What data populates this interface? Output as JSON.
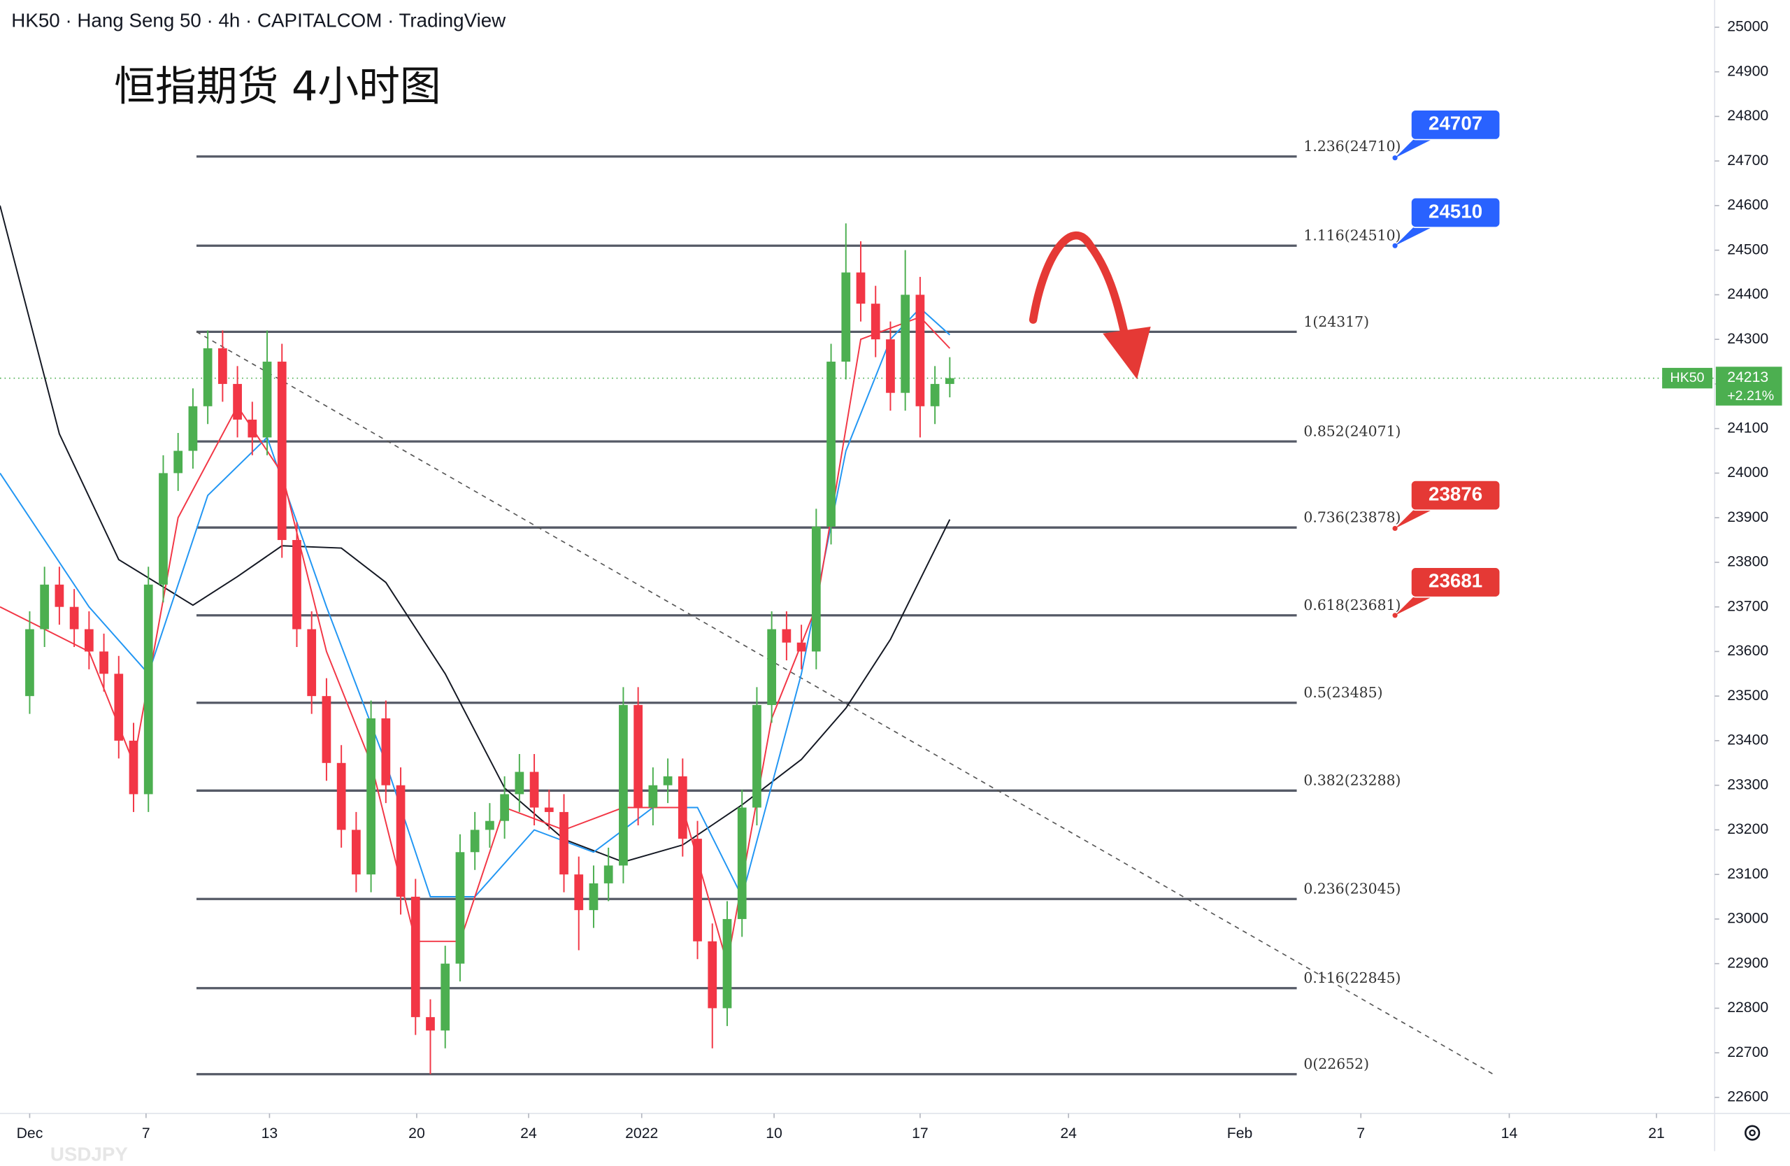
{
  "chart_data": {
    "type": "candlestick",
    "header": "HK50 · Hang Seng 50 · 4h · CAPITALCOM · TradingView",
    "title": "恒指期货 4小时图",
    "watermark": "USDJPY",
    "up_color": "#4caf50",
    "down_color": "#f23645",
    "xlim": [
      -1,
      56.77
    ],
    "xticks": [
      {
        "value": 0,
        "label": "Dec"
      },
      {
        "value": 3.92,
        "label": "7"
      },
      {
        "value": 8.08,
        "label": "13"
      },
      {
        "value": 13.04,
        "label": "20"
      },
      {
        "value": 16.81,
        "label": "24"
      },
      {
        "value": 20.62,
        "label": "2022"
      },
      {
        "value": 25.08,
        "label": "10"
      },
      {
        "value": 30,
        "label": "17"
      },
      {
        "value": 35,
        "label": "24"
      },
      {
        "value": 40.77,
        "label": "Feb"
      },
      {
        "value": 44.85,
        "label": "7"
      },
      {
        "value": 49.85,
        "label": "14"
      },
      {
        "value": 54.81,
        "label": "21"
      }
    ],
    "ylim": [
      22564,
      25061
    ],
    "yticks": [
      22600,
      22700,
      22800,
      22900,
      23000,
      23100,
      23200,
      23300,
      23400,
      23500,
      23600,
      23700,
      23800,
      23900,
      24000,
      24100,
      24200,
      24300,
      24400,
      24500,
      24600,
      24700,
      24800,
      24900,
      25000
    ],
    "x": [
      0,
      0.5,
      1,
      1.5,
      2,
      2.5,
      3,
      3.5,
      4,
      4.5,
      5,
      5.5,
      6,
      6.5,
      7,
      7.5,
      8,
      8.5,
      9,
      9.5,
      10,
      10.5,
      11,
      11.5,
      12,
      12.5,
      13,
      13.5,
      14,
      14.5,
      15,
      15.5,
      16,
      16.5,
      17,
      17.5,
      18,
      18.5,
      19,
      19.5,
      20,
      20.5,
      21,
      21.5,
      22,
      22.5,
      23,
      23.5,
      24,
      24.5,
      25,
      25.5,
      26,
      26.5,
      27,
      27.5,
      28,
      28.5,
      29,
      29.5,
      30,
      30.5,
      31
    ],
    "open": [
      23500,
      23650,
      23750,
      23700,
      23650,
      23600,
      23550,
      23400,
      23280,
      23750,
      24000,
      24050,
      24150,
      24280,
      24200,
      24120,
      24080,
      24250,
      23850,
      23650,
      23500,
      23350,
      23200,
      23100,
      23450,
      23300,
      23050,
      22780,
      22750,
      22900,
      23150,
      23200,
      23220,
      23280,
      23330,
      23250,
      23240,
      23100,
      23020,
      23080,
      23120,
      23480,
      23250,
      23300,
      23320,
      23180,
      22950,
      22800,
      23000,
      23250,
      23480,
      23650,
      23620,
      23600,
      23880,
      24250,
      24450,
      24380,
      24300,
      24180,
      24400,
      24150,
      24200
    ],
    "high": [
      23690,
      23790,
      23790,
      23740,
      23690,
      23640,
      23590,
      23440,
      23790,
      24040,
      24090,
      24190,
      24320,
      24320,
      24240,
      24160,
      24320,
      24290,
      23890,
      23690,
      23540,
      23390,
      23240,
      23490,
      23490,
      23340,
      23090,
      22820,
      22940,
      23190,
      23240,
      23260,
      23320,
      23370,
      23370,
      23290,
      23280,
      23140,
      23120,
      23160,
      23520,
      23520,
      23340,
      23360,
      23360,
      23220,
      22990,
      23040,
      23290,
      23520,
      23690,
      23690,
      23660,
      23920,
      24290,
      24560,
      24520,
      24420,
      24340,
      24500,
      24440,
      24240,
      24260
    ],
    "low": [
      23460,
      23610,
      23660,
      23610,
      23560,
      23510,
      23360,
      23240,
      23240,
      23710,
      23960,
      24010,
      24110,
      24160,
      24080,
      24040,
      24040,
      23810,
      23610,
      23460,
      23310,
      23160,
      23060,
      23060,
      23260,
      23010,
      22740,
      22652,
      22710,
      22860,
      23110,
      23160,
      23180,
      23240,
      23210,
      23200,
      23060,
      22930,
      22980,
      23040,
      23080,
      23210,
      23210,
      23260,
      23140,
      22910,
      22710,
      22760,
      22960,
      23210,
      23440,
      23580,
      23560,
      23560,
      23840,
      24210,
      24340,
      24260,
      24140,
      24140,
      24080,
      24110,
      24170
    ],
    "close": [
      23650,
      23750,
      23700,
      23650,
      23600,
      23550,
      23400,
      23280,
      23750,
      24000,
      24050,
      24150,
      24280,
      24200,
      24120,
      24080,
      24250,
      23850,
      23650,
      23500,
      23350,
      23200,
      23100,
      23450,
      23300,
      23050,
      22780,
      22750,
      22900,
      23150,
      23200,
      23220,
      23280,
      23330,
      23250,
      23240,
      23100,
      23020,
      23080,
      23120,
      23480,
      23250,
      23300,
      23320,
      23180,
      22950,
      22800,
      23000,
      23250,
      23480,
      23650,
      23620,
      23600,
      23880,
      24250,
      24450,
      24380,
      24300,
      24180,
      24400,
      24150,
      24200,
      24213
    ],
    "overlays": [
      {
        "color": "#131722",
        "x": [
          -1,
          1,
          3,
          5.5,
          7,
          8.5,
          10.5,
          12,
          14,
          16,
          18,
          20,
          22,
          24,
          26,
          27.5,
          29,
          31
        ],
        "values": [
          24600,
          24088,
          23806,
          23704,
          23768,
          23837,
          23832,
          23755,
          23550,
          23294,
          23179,
          23128,
          23166,
          23256,
          23358,
          23473,
          23627,
          23896
        ]
      },
      {
        "color": "#2196f3",
        "x": [
          -1,
          2,
          4,
          6,
          8,
          10,
          12,
          13.5,
          15,
          17,
          19,
          21,
          22.5,
          24,
          26,
          27.5,
          29,
          30,
          31
        ],
        "values": [
          24000,
          23700,
          23550,
          23950,
          24080,
          23700,
          23350,
          23050,
          23050,
          23200,
          23150,
          23250,
          23250,
          23050,
          23550,
          24050,
          24300,
          24370,
          24310
        ]
      },
      {
        "color": "#f23645",
        "x": [
          -1,
          2,
          3.5,
          5,
          7,
          8.5,
          10,
          11.5,
          13,
          14.5,
          16,
          18,
          20,
          22,
          23.5,
          25,
          26.5,
          28,
          30,
          31
        ],
        "values": [
          23700,
          23600,
          23350,
          23900,
          24150,
          24000,
          23600,
          23350,
          22950,
          22950,
          23250,
          23200,
          23250,
          23250,
          22900,
          23450,
          23700,
          24300,
          24350,
          24280
        ]
      }
    ],
    "fib_levels": [
      {
        "value": 24710,
        "label": "1.236(24710)"
      },
      {
        "value": 24510,
        "label": "1.116(24510)"
      },
      {
        "value": 24317,
        "label": "1(24317)"
      },
      {
        "value": 24071,
        "label": "0.852(24071)"
      },
      {
        "value": 23878,
        "label": "0.736(23878)"
      },
      {
        "value": 23681,
        "label": "0.618(23681)"
      },
      {
        "value": 23485,
        "label": "0.5(23485)"
      },
      {
        "value": 23288,
        "label": "0.382(23288)"
      },
      {
        "value": 23045,
        "label": "0.236(23045)"
      },
      {
        "value": 22845,
        "label": "0.116(22845)"
      },
      {
        "value": 22652,
        "label": "0(22652)"
      }
    ],
    "fib_x": [
      5.62,
      42.69
    ],
    "trendline": {
      "x": [
        5.62,
        49.31
      ],
      "values": [
        24317,
        22652
      ]
    },
    "callouts": [
      {
        "value": 24707,
        "color": "#2962ff"
      },
      {
        "value": 24510,
        "color": "#2962ff"
      },
      {
        "value": 23876,
        "color": "#e53935"
      },
      {
        "value": 23681,
        "color": "#e53935"
      }
    ],
    "price_tag": {
      "symbol": "HK50",
      "value": 24213,
      "change": "+2.21%",
      "color": "#4caf50"
    }
  }
}
